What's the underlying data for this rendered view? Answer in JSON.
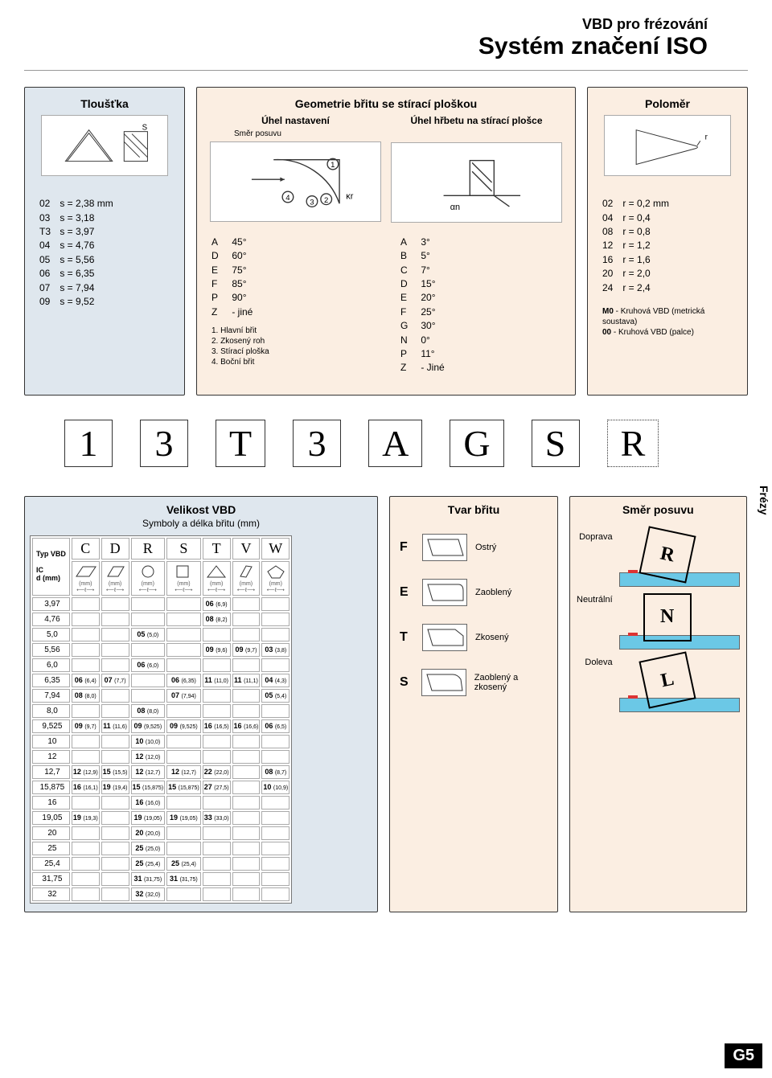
{
  "header": {
    "line1": "VBD pro frézování",
    "line2": "Systém značení ISO"
  },
  "side_tab": "Frézy",
  "page_number": "G5",
  "thickness": {
    "title": "Tloušťka",
    "diagram_label": "S",
    "items": [
      {
        "code": "02",
        "val": "s = 2,38 mm"
      },
      {
        "code": "03",
        "val": "s = 3,18"
      },
      {
        "code": "T3",
        "val": "s = 3,97"
      },
      {
        "code": "04",
        "val": "s = 4,76"
      },
      {
        "code": "05",
        "val": "s = 5,56"
      },
      {
        "code": "06",
        "val": "s = 6,35"
      },
      {
        "code": "07",
        "val": "s = 7,94"
      },
      {
        "code": "09",
        "val": "s = 9,52"
      }
    ]
  },
  "geometry": {
    "title": "Geometrie břitu se stírací ploškou",
    "col1_title": "Úhel nastavení",
    "col1_sub": "Směr posuvu",
    "col2_title": "Úhel hřbetu na stírací plošce",
    "angles": [
      {
        "c": "A",
        "v": "45°"
      },
      {
        "c": "D",
        "v": "60°"
      },
      {
        "c": "E",
        "v": "75°"
      },
      {
        "c": "F",
        "v": "85°"
      },
      {
        "c": "P",
        "v": "90°"
      },
      {
        "c": "Z",
        "v": "-  jiné"
      }
    ],
    "notes": [
      "1. Hlavní břit",
      "2. Zkosený roh",
      "3. Stírací ploška",
      "4. Boční břit"
    ],
    "relief": [
      {
        "c": "A",
        "v": "3°"
      },
      {
        "c": "B",
        "v": "5°"
      },
      {
        "c": "C",
        "v": "7°"
      },
      {
        "c": "D",
        "v": "15°"
      },
      {
        "c": "E",
        "v": "20°"
      },
      {
        "c": "F",
        "v": "25°"
      },
      {
        "c": "G",
        "v": "30°"
      },
      {
        "c": "N",
        "v": "0°"
      },
      {
        "c": "P",
        "v": "11°"
      },
      {
        "c": "Z",
        "v": "-  Jiné"
      }
    ],
    "diagram_labels": {
      "kr": "κr",
      "an": "αn"
    }
  },
  "radius": {
    "title": "Poloměr",
    "diagram_label": "r",
    "items": [
      {
        "c": "02",
        "v": "r =  0,2 mm"
      },
      {
        "c": "04",
        "v": "r =  0,4"
      },
      {
        "c": "08",
        "v": "r =  0,8"
      },
      {
        "c": "12",
        "v": "r =  1,2"
      },
      {
        "c": "16",
        "v": "r =  1,6"
      },
      {
        "c": "20",
        "v": "r =  2,0"
      },
      {
        "c": "24",
        "v": "r =  2,4"
      }
    ],
    "note1": "M0 - Kruhová VBD (metrická soustava)",
    "note2": "00 - Kruhová VBD  (palce)"
  },
  "code_strip": [
    "1",
    "3",
    "T",
    "3",
    "A",
    "G",
    "S",
    "R"
  ],
  "size_panel": {
    "title": "Velikost VBD",
    "subtitle": "Symboly a délka břitu (mm)",
    "corner_label": "Typ VBD",
    "row_head": "IC\nd (mm)",
    "unit": "(mm)",
    "shapes": [
      "C",
      "D",
      "R",
      "S",
      "T",
      "V",
      "W"
    ],
    "rows": [
      {
        "d": "3,97",
        "cells": [
          "",
          "",
          "",
          "",
          "06 (6,9)",
          "",
          ""
        ]
      },
      {
        "d": "4,76",
        "cells": [
          "",
          "",
          "",
          "",
          "08 (8,2)",
          "",
          ""
        ]
      },
      {
        "d": "5,0",
        "cells": [
          "",
          "",
          "05 (5,0)",
          "",
          "",
          "",
          ""
        ]
      },
      {
        "d": "5,56",
        "cells": [
          "",
          "",
          "",
          "",
          "09 (9,6)",
          "09 (9,7)",
          "03 (3,8)"
        ]
      },
      {
        "d": "6,0",
        "cells": [
          "",
          "",
          "06 (6,0)",
          "",
          "",
          "",
          ""
        ]
      },
      {
        "d": "6,35",
        "cells": [
          "06 (6,4)",
          "07 (7,7)",
          "",
          "06 (6,35)",
          "11 (11,0)",
          "11 (11,1)",
          "04 (4,3)"
        ]
      },
      {
        "d": "7,94",
        "cells": [
          "08 (8,0)",
          "",
          "",
          "07 (7,94)",
          "",
          "",
          "05 (5,4)"
        ]
      },
      {
        "d": "8,0",
        "cells": [
          "",
          "",
          "08 (8,0)",
          "",
          "",
          "",
          ""
        ]
      },
      {
        "d": "9,525",
        "cells": [
          "09 (9,7)",
          "11 (11,6)",
          "09(9,525)",
          "09 (9,525)",
          "16 (16,5)",
          "16 (16,6)",
          "06 (6,5)"
        ]
      },
      {
        "d": "10",
        "cells": [
          "",
          "",
          "10 (10,0)",
          "",
          "",
          "",
          ""
        ]
      },
      {
        "d": "12",
        "cells": [
          "",
          "",
          "12 (12,0)",
          "",
          "",
          "",
          ""
        ]
      },
      {
        "d": "12,7",
        "cells": [
          "12 (12,9)",
          "15 (15,5)",
          "12 (12,7)",
          "12 (12,7)",
          "22 (22,0)",
          "",
          "08 (8,7)"
        ]
      },
      {
        "d": "15,875",
        "cells": [
          "16 (16,1)",
          "19 (19,4)",
          "15(15,875)",
          "15(15,875)",
          "27 (27,5)",
          "",
          "10 (10,9)"
        ]
      },
      {
        "d": "16",
        "cells": [
          "",
          "",
          "16 (16,0)",
          "",
          "",
          "",
          ""
        ]
      },
      {
        "d": "19,05",
        "cells": [
          "19 (19,3)",
          "",
          "19 (19,05)",
          "19 (19,05)",
          "33 (33,0)",
          "",
          ""
        ]
      },
      {
        "d": "20",
        "cells": [
          "",
          "",
          "20 (20,0)",
          "",
          "",
          "",
          ""
        ]
      },
      {
        "d": "25",
        "cells": [
          "",
          "",
          "25 (25,0)",
          "",
          "",
          "",
          ""
        ]
      },
      {
        "d": "25,4",
        "cells": [
          "",
          "",
          "25 (25,4)",
          "25 (25,4)",
          "",
          "",
          ""
        ]
      },
      {
        "d": "31,75",
        "cells": [
          "",
          "",
          "31(31,75)",
          "31(31,75)",
          "",
          "",
          ""
        ]
      },
      {
        "d": "32",
        "cells": [
          "",
          "",
          "32 (32,0)",
          "",
          "",
          "",
          ""
        ]
      }
    ]
  },
  "shape_panel": {
    "title": "Tvar břitu",
    "items": [
      {
        "code": "F",
        "label": "Ostrý"
      },
      {
        "code": "E",
        "label": "Zaoblený"
      },
      {
        "code": "T",
        "label": "Zkosený"
      },
      {
        "code": "S",
        "label": "Zaoblený a zkosený"
      }
    ]
  },
  "feed_panel": {
    "title": "Směr posuvu",
    "items": [
      {
        "letter": "R",
        "label": "Doprava"
      },
      {
        "letter": "N",
        "label": "Neutrální"
      },
      {
        "letter": "L",
        "label": "Doleva"
      }
    ]
  },
  "colors": {
    "peach": "#fbeee2",
    "blue_panel": "#dfe7ee",
    "workpiece": "#6bc8e6",
    "accent": "#d33"
  }
}
